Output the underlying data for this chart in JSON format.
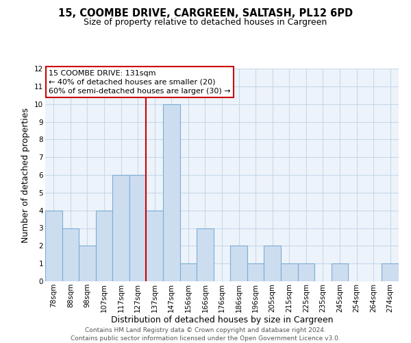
{
  "title": "15, COOMBE DRIVE, CARGREEN, SALTASH, PL12 6PD",
  "subtitle": "Size of property relative to detached houses in Cargreen",
  "xlabel": "Distribution of detached houses by size in Cargreen",
  "ylabel": "Number of detached properties",
  "bar_labels": [
    "78sqm",
    "88sqm",
    "98sqm",
    "107sqm",
    "117sqm",
    "127sqm",
    "137sqm",
    "147sqm",
    "156sqm",
    "166sqm",
    "176sqm",
    "186sqm",
    "196sqm",
    "205sqm",
    "215sqm",
    "225sqm",
    "235sqm",
    "245sqm",
    "254sqm",
    "264sqm",
    "274sqm"
  ],
  "bar_heights": [
    4,
    3,
    2,
    4,
    6,
    6,
    4,
    10,
    1,
    3,
    0,
    2,
    1,
    2,
    1,
    1,
    0,
    1,
    0,
    0,
    1
  ],
  "bar_color": "#cdddf0",
  "bar_edge_color": "#7aadd4",
  "vline_x_idx": 6,
  "vline_color": "#cc0000",
  "ylim": [
    0,
    12
  ],
  "yticks": [
    0,
    1,
    2,
    3,
    4,
    5,
    6,
    7,
    8,
    9,
    10,
    11,
    12
  ],
  "annotation_title": "15 COOMBE DRIVE: 131sqm",
  "annotation_line1": "← 40% of detached houses are smaller (20)",
  "annotation_line2": "60% of semi-detached houses are larger (30) →",
  "annotation_box_color": "#ffffff",
  "annotation_box_edge": "#cc0000",
  "footer_line1": "Contains HM Land Registry data © Crown copyright and database right 2024.",
  "footer_line2": "Contains public sector information licensed under the Open Government Licence v3.0.",
  "grid_color": "#c8d8e8",
  "background_color": "#edf3fa",
  "title_fontsize": 10.5,
  "subtitle_fontsize": 9,
  "axis_label_fontsize": 9,
  "tick_fontsize": 7.5,
  "annotation_fontsize": 8,
  "footer_fontsize": 6.5
}
